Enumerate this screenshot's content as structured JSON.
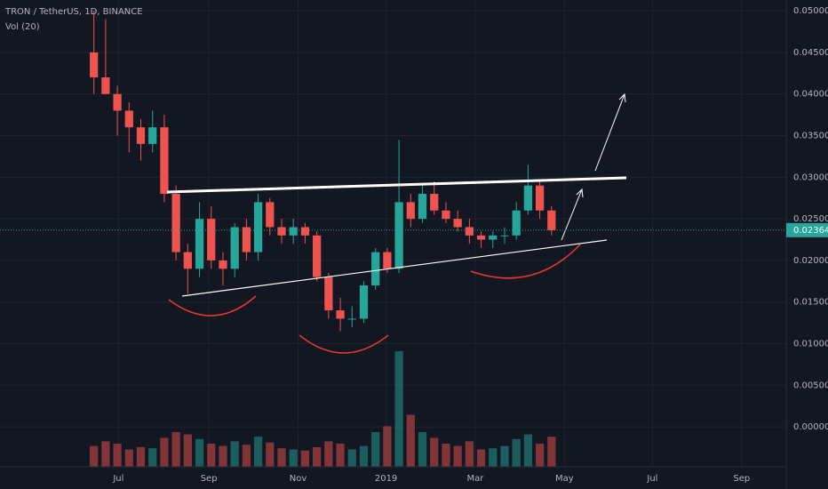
{
  "chart_data": {
    "type": "candlestick",
    "title": "TRON / TetherUS, 1D, BINANCE",
    "subtitle": "Vol (20)",
    "up_color": "#26a69a",
    "down_color": "#ef5350",
    "x": [
      8,
      9,
      10,
      11,
      12,
      13,
      14,
      15,
      16,
      17,
      18,
      19,
      20,
      21,
      22,
      23,
      24,
      25,
      26,
      27,
      28,
      29,
      30,
      31,
      32,
      33,
      34,
      35,
      36,
      37,
      38,
      39,
      40,
      41,
      42,
      43,
      44,
      45,
      46,
      47
    ],
    "open": [
      0.045,
      0.042,
      0.04,
      0.038,
      0.036,
      0.034,
      0.036,
      0.028,
      0.021,
      0.019,
      0.025,
      0.02,
      0.019,
      0.024,
      0.021,
      0.027,
      0.024,
      0.023,
      0.024,
      0.023,
      0.018,
      0.014,
      0.013,
      0.013,
      0.017,
      0.021,
      0.019,
      0.027,
      0.025,
      0.028,
      0.026,
      0.025,
      0.024,
      0.023,
      0.0225,
      0.023,
      0.023,
      0.026,
      0.029,
      0.026
    ],
    "high": [
      0.05,
      0.049,
      0.041,
      0.039,
      0.037,
      0.038,
      0.0375,
      0.029,
      0.022,
      0.027,
      0.0265,
      0.021,
      0.0245,
      0.025,
      0.028,
      0.0275,
      0.025,
      0.025,
      0.0245,
      0.0235,
      0.0185,
      0.0155,
      0.0145,
      0.0175,
      0.0215,
      0.0215,
      0.0345,
      0.028,
      0.029,
      0.0295,
      0.027,
      0.026,
      0.025,
      0.0235,
      0.0235,
      0.024,
      0.027,
      0.0315,
      0.0295,
      0.0265
    ],
    "low": [
      0.04,
      0.04,
      0.035,
      0.033,
      0.032,
      0.033,
      0.027,
      0.02,
      0.016,
      0.018,
      0.019,
      0.017,
      0.018,
      0.02,
      0.02,
      0.023,
      0.022,
      0.022,
      0.022,
      0.0175,
      0.013,
      0.0115,
      0.012,
      0.0125,
      0.0165,
      0.0185,
      0.0185,
      0.024,
      0.0245,
      0.0255,
      0.0245,
      0.0235,
      0.022,
      0.0215,
      0.0215,
      0.022,
      0.0225,
      0.0255,
      0.025,
      0.023
    ],
    "close": [
      0.042,
      0.04,
      0.038,
      0.036,
      0.034,
      0.036,
      0.028,
      0.021,
      0.019,
      0.025,
      0.02,
      0.019,
      0.024,
      0.021,
      0.027,
      0.024,
      0.023,
      0.024,
      0.023,
      0.018,
      0.014,
      0.013,
      0.013,
      0.017,
      0.021,
      0.019,
      0.027,
      0.025,
      0.028,
      0.026,
      0.025,
      0.024,
      0.023,
      0.0225,
      0.023,
      0.023,
      0.026,
      0.029,
      0.026,
      0.02364
    ],
    "volume": [
      18,
      22,
      20,
      15,
      17,
      16,
      25,
      30,
      28,
      24,
      20,
      18,
      22,
      19,
      26,
      21,
      16,
      15,
      14,
      17,
      22,
      20,
      15,
      18,
      30,
      35,
      100,
      45,
      30,
      25,
      20,
      18,
      22,
      15,
      16,
      18,
      24,
      28,
      20,
      26
    ],
    "volume_ylim": [
      0,
      100
    ],
    "xlim": [
      0,
      67
    ],
    "xticks": [
      {
        "value": 10.1,
        "label": "Jul"
      },
      {
        "value": 17.8,
        "label": "Sep"
      },
      {
        "value": 25.4,
        "label": "Nov"
      },
      {
        "value": 32.9,
        "label": "2019"
      },
      {
        "value": 40.5,
        "label": "Mar"
      },
      {
        "value": 48.1,
        "label": "May"
      },
      {
        "value": 55.6,
        "label": "Jul"
      },
      {
        "value": 63.2,
        "label": "Sep"
      }
    ],
    "ylim": [
      -0.0048,
      0.0513
    ],
    "yticks": [
      {
        "value": 0.05,
        "label": "0.05000"
      },
      {
        "value": 0.045,
        "label": "0.04500"
      },
      {
        "value": 0.04,
        "label": "0.04000"
      },
      {
        "value": 0.035,
        "label": "0.03500"
      },
      {
        "value": 0.03,
        "label": "0.03000"
      },
      {
        "value": 0.025,
        "label": "0.02500"
      },
      {
        "value": 0.02,
        "label": "0.02000"
      },
      {
        "value": 0.015,
        "label": "0.01500"
      },
      {
        "value": 0.01,
        "label": "0.01000"
      },
      {
        "value": 0.005,
        "label": "0.00500"
      },
      {
        "value": 0,
        "label": "0.00000"
      }
    ],
    "last_price": {
      "value": 0.02364,
      "label": "0.02364"
    },
    "grid": true
  }
}
